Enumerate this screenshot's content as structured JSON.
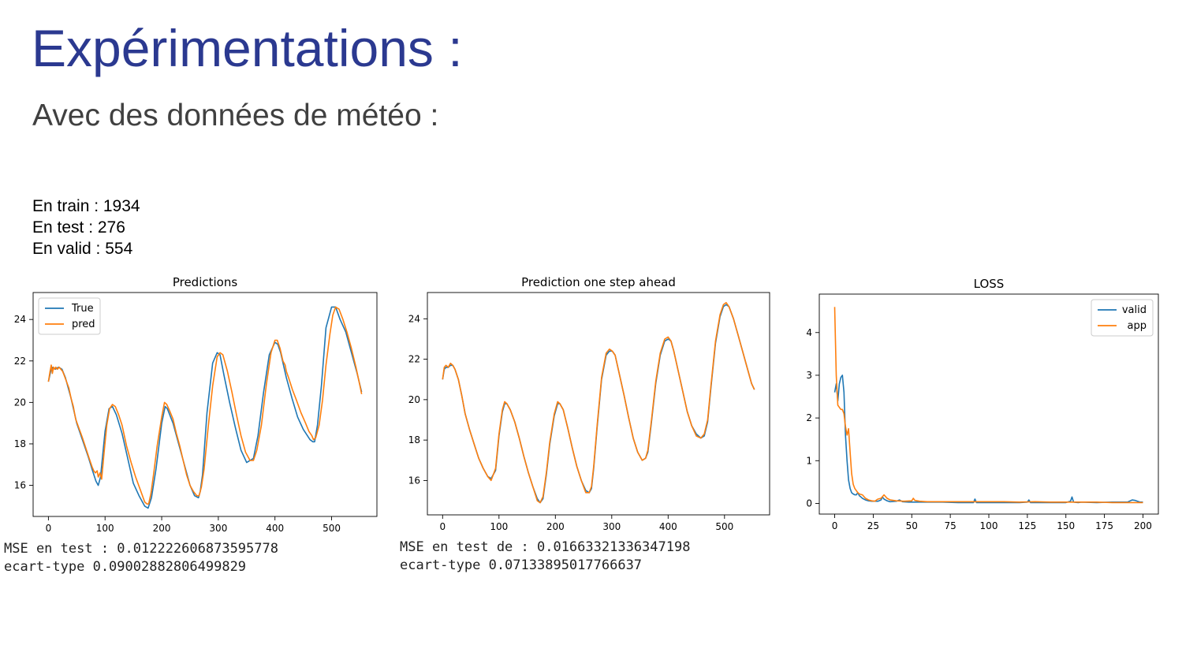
{
  "slide": {
    "title": "Expérimentations :",
    "subtitle": "Avec des données de météo :",
    "counts": [
      "En train : 1934",
      "En test : 276",
      "En valid : 554"
    ]
  },
  "stats": {
    "predictions": [
      "MSE en test : 0.012222606873595778",
      "ecart-type 0.09002882806499829"
    ],
    "one_step": [
      "MSE en test de : 0.01663321336347198",
      "ecart-type 0.07133895017766637"
    ]
  },
  "colors": {
    "blue": "#1f77b4",
    "orange": "#ff7f0e",
    "title": "#2b3990"
  },
  "chart_data": [
    {
      "type": "line",
      "title": "Predictions",
      "xlabel": "",
      "ylabel": "",
      "xlim": [
        -27,
        580
      ],
      "ylim": [
        14.5,
        25.3
      ],
      "xticks": [
        0,
        100,
        200,
        300,
        400,
        500
      ],
      "yticks": [
        16,
        18,
        20,
        22,
        24
      ],
      "legend": "top-left",
      "series": [
        {
          "name": "True",
          "color": "#1f77b4",
          "x": [
            0,
            4,
            8,
            12,
            18,
            24,
            30,
            40,
            50,
            60,
            70,
            78,
            84,
            88,
            92,
            100,
            107,
            113,
            120,
            130,
            140,
            150,
            160,
            170,
            176,
            182,
            190,
            200,
            206,
            210,
            220,
            230,
            240,
            250,
            258,
            265,
            268,
            272,
            280,
            290,
            298,
            303,
            310,
            320,
            330,
            340,
            350,
            362,
            370,
            380,
            390,
            400,
            405,
            410,
            420,
            430,
            440,
            450,
            462,
            467,
            470,
            475,
            482,
            490,
            500,
            507,
            515,
            525,
            535,
            545,
            553
          ],
          "y": [
            21.0,
            21.5,
            21.7,
            21.6,
            21.7,
            21.6,
            21.2,
            20.2,
            19.0,
            18.2,
            17.4,
            16.7,
            16.2,
            16.0,
            16.4,
            18.6,
            19.7,
            19.8,
            19.4,
            18.5,
            17.3,
            16.1,
            15.5,
            15.0,
            14.9,
            15.4,
            16.8,
            19.0,
            19.8,
            19.7,
            19.0,
            18.0,
            17.0,
            16.0,
            15.5,
            15.4,
            15.7,
            16.5,
            19.5,
            21.9,
            22.4,
            22.3,
            21.3,
            20.0,
            18.8,
            17.7,
            17.1,
            17.3,
            18.4,
            20.5,
            22.3,
            22.9,
            22.8,
            22.4,
            21.2,
            20.2,
            19.3,
            18.7,
            18.2,
            18.1,
            18.1,
            18.9,
            20.8,
            23.6,
            24.6,
            24.6,
            24.0,
            23.4,
            22.4,
            21.4,
            20.5
          ]
        },
        {
          "name": "pred",
          "color": "#ff7f0e",
          "x": [
            0,
            3,
            5,
            7,
            9,
            11,
            13,
            16,
            19,
            22,
            25,
            28,
            32,
            36,
            40,
            44,
            48,
            52,
            56,
            60,
            66,
            72,
            77,
            80,
            83,
            86,
            88,
            91,
            94,
            98,
            103,
            108,
            113,
            118,
            124,
            130,
            138,
            146,
            154,
            162,
            170,
            174,
            177,
            181,
            186,
            192,
            200,
            205,
            209,
            214,
            220,
            226,
            232,
            238,
            244,
            250,
            256,
            262,
            266,
            270,
            275,
            282,
            290,
            298,
            303,
            308,
            316,
            324,
            332,
            340,
            348,
            356,
            362,
            368,
            376,
            385,
            393,
            400,
            404,
            409,
            414,
            418,
            420,
            424,
            431,
            438,
            446,
            454,
            460,
            465,
            468,
            472,
            478,
            484,
            490,
            497,
            502,
            507,
            513,
            520,
            527,
            535,
            543,
            550,
            553
          ],
          "y": [
            21.0,
            21.5,
            21.8,
            21.4,
            21.7,
            21.6,
            21.7,
            21.6,
            21.7,
            21.6,
            21.5,
            21.3,
            21.0,
            20.7,
            20.2,
            19.8,
            19.2,
            18.9,
            18.6,
            18.3,
            17.8,
            17.3,
            16.9,
            16.7,
            16.6,
            16.7,
            16.4,
            16.6,
            16.3,
            17.5,
            18.9,
            19.7,
            19.9,
            19.8,
            19.4,
            18.9,
            17.9,
            17.1,
            16.4,
            15.8,
            15.2,
            15.1,
            15.1,
            15.6,
            16.6,
            17.9,
            19.3,
            20.0,
            19.9,
            19.6,
            19.2,
            18.5,
            17.9,
            17.2,
            16.5,
            16.0,
            15.7,
            15.5,
            15.5,
            15.9,
            16.8,
            18.8,
            20.8,
            22.2,
            22.4,
            22.3,
            21.5,
            20.5,
            19.4,
            18.4,
            17.6,
            17.2,
            17.2,
            17.7,
            18.9,
            20.9,
            22.4,
            23.0,
            23.0,
            22.6,
            22.0,
            21.8,
            21.5,
            21.2,
            20.6,
            20.1,
            19.5,
            19.0,
            18.6,
            18.4,
            18.2,
            18.3,
            18.9,
            20.1,
            21.8,
            23.3,
            24.2,
            24.6,
            24.5,
            24.0,
            23.4,
            22.6,
            21.7,
            20.8,
            20.4
          ]
        }
      ]
    },
    {
      "type": "line",
      "title": "Prediction one step ahead",
      "xlabel": "",
      "ylabel": "",
      "xlim": [
        -27,
        580
      ],
      "ylim": [
        14.3,
        25.3
      ],
      "xticks": [
        0,
        100,
        200,
        300,
        400,
        500
      ],
      "yticks": [
        16,
        18,
        20,
        22,
        24
      ],
      "series": [
        {
          "color": "#1f77b4",
          "x": [
            0,
            3,
            6,
            10,
            14,
            18,
            22,
            28,
            34,
            40,
            48,
            56,
            64,
            72,
            80,
            86,
            90,
            94,
            100,
            106,
            110,
            114,
            120,
            128,
            136,
            144,
            152,
            160,
            168,
            173,
            178,
            184,
            190,
            198,
            204,
            208,
            214,
            222,
            230,
            238,
            246,
            254,
            260,
            264,
            268,
            274,
            282,
            290,
            296,
            301,
            306,
            314,
            322,
            330,
            338,
            346,
            354,
            360,
            364,
            370,
            378,
            386,
            394,
            400,
            405,
            410,
            418,
            426,
            434,
            442,
            450,
            458,
            464,
            470,
            476,
            484,
            492,
            498,
            503,
            508,
            516,
            524,
            532,
            540,
            548,
            553
          ],
          "y": [
            21.0,
            21.5,
            21.6,
            21.6,
            21.7,
            21.7,
            21.5,
            21.0,
            20.2,
            19.3,
            18.5,
            17.8,
            17.1,
            16.6,
            16.2,
            16.1,
            16.3,
            16.5,
            18.2,
            19.4,
            19.8,
            19.8,
            19.5,
            18.9,
            18.1,
            17.2,
            16.4,
            15.7,
            15.1,
            14.9,
            15.1,
            16.3,
            17.8,
            19.2,
            19.8,
            19.8,
            19.5,
            18.6,
            17.6,
            16.7,
            16.0,
            15.5,
            15.4,
            15.6,
            16.6,
            18.6,
            21.0,
            22.2,
            22.4,
            22.4,
            22.2,
            21.2,
            20.2,
            19.1,
            18.1,
            17.4,
            17.0,
            17.1,
            17.4,
            18.8,
            20.8,
            22.2,
            22.9,
            23.0,
            22.9,
            22.4,
            21.4,
            20.4,
            19.4,
            18.7,
            18.3,
            18.1,
            18.2,
            18.9,
            20.6,
            22.8,
            24.1,
            24.6,
            24.7,
            24.6,
            24.0,
            23.2,
            22.4,
            21.6,
            20.8,
            20.5
          ]
        },
        {
          "color": "#ff7f0e",
          "x": [
            0,
            3,
            6,
            10,
            14,
            18,
            22,
            28,
            34,
            40,
            48,
            56,
            64,
            72,
            80,
            86,
            90,
            94,
            100,
            106,
            110,
            114,
            120,
            128,
            136,
            144,
            152,
            160,
            168,
            173,
            178,
            184,
            190,
            198,
            204,
            208,
            214,
            222,
            230,
            238,
            246,
            254,
            260,
            264,
            268,
            274,
            282,
            290,
            296,
            301,
            306,
            314,
            322,
            330,
            338,
            346,
            354,
            360,
            364,
            370,
            378,
            386,
            394,
            400,
            405,
            410,
            418,
            426,
            434,
            442,
            450,
            458,
            464,
            470,
            476,
            484,
            492,
            498,
            503,
            508,
            516,
            524,
            532,
            540,
            548,
            553
          ],
          "y": [
            21.0,
            21.6,
            21.7,
            21.6,
            21.8,
            21.7,
            21.5,
            21.0,
            20.2,
            19.3,
            18.5,
            17.8,
            17.1,
            16.6,
            16.2,
            16.0,
            16.3,
            16.6,
            18.3,
            19.5,
            19.9,
            19.8,
            19.5,
            18.9,
            18.1,
            17.2,
            16.4,
            15.7,
            15.0,
            14.9,
            15.2,
            16.4,
            17.9,
            19.3,
            19.9,
            19.8,
            19.5,
            18.6,
            17.6,
            16.7,
            16.0,
            15.4,
            15.4,
            15.7,
            16.7,
            18.7,
            21.1,
            22.3,
            22.5,
            22.4,
            22.2,
            21.2,
            20.2,
            19.1,
            18.1,
            17.4,
            17.0,
            17.1,
            17.5,
            18.9,
            20.9,
            22.3,
            23.0,
            23.1,
            22.9,
            22.4,
            21.4,
            20.4,
            19.4,
            18.7,
            18.2,
            18.1,
            18.3,
            19.0,
            20.7,
            22.9,
            24.2,
            24.7,
            24.8,
            24.6,
            24.0,
            23.2,
            22.4,
            21.6,
            20.8,
            20.5
          ]
        }
      ]
    },
    {
      "type": "line",
      "title": "LOSS",
      "xlabel": "",
      "ylabel": "",
      "xlim": [
        -10,
        210
      ],
      "ylim": [
        -0.25,
        4.9
      ],
      "xticks": [
        0,
        25,
        50,
        75,
        100,
        125,
        150,
        175,
        200
      ],
      "yticks": [
        0,
        1,
        2,
        3,
        4
      ],
      "legend": "top-right",
      "series": [
        {
          "name": "valid",
          "color": "#1f77b4",
          "x": [
            0,
            1,
            2,
            3,
            4,
            5,
            6,
            7,
            8,
            9,
            10,
            11,
            12,
            13,
            14,
            15,
            16,
            17,
            18,
            20,
            22,
            24,
            26,
            28,
            30,
            31,
            32,
            34,
            36,
            40,
            42,
            44,
            48,
            52,
            60,
            70,
            80,
            90,
            91,
            92,
            95,
            100,
            110,
            120,
            125,
            126,
            127,
            130,
            140,
            150,
            153,
            154,
            155,
            158,
            160,
            170,
            180,
            190,
            193,
            195,
            198,
            200
          ],
          "y": [
            2.6,
            2.8,
            2.4,
            2.8,
            2.95,
            3.0,
            2.6,
            1.6,
            1.0,
            0.55,
            0.35,
            0.25,
            0.22,
            0.2,
            0.2,
            0.25,
            0.18,
            0.15,
            0.12,
            0.08,
            0.06,
            0.05,
            0.05,
            0.05,
            0.08,
            0.15,
            0.1,
            0.06,
            0.04,
            0.05,
            0.08,
            0.04,
            0.03,
            0.03,
            0.03,
            0.03,
            0.02,
            0.02,
            0.1,
            0.02,
            0.02,
            0.02,
            0.02,
            0.02,
            0.03,
            0.08,
            0.02,
            0.02,
            0.02,
            0.02,
            0.05,
            0.15,
            0.03,
            0.02,
            0.03,
            0.02,
            0.03,
            0.03,
            0.08,
            0.07,
            0.03,
            0.03
          ]
        },
        {
          "name": "app",
          "color": "#ff7f0e",
          "x": [
            0,
            1,
            2,
            3,
            4,
            5,
            6,
            7,
            8,
            9,
            10,
            11,
            12,
            13,
            14,
            15,
            16,
            18,
            20,
            22,
            24,
            26,
            28,
            30,
            32,
            34,
            36,
            40,
            45,
            50,
            51,
            52,
            55,
            60,
            70,
            80,
            90,
            100,
            110,
            120,
            130,
            140,
            150,
            160,
            170,
            180,
            190,
            200
          ],
          "y": [
            4.6,
            3.0,
            2.3,
            2.25,
            2.2,
            2.2,
            2.1,
            1.8,
            1.6,
            1.75,
            1.2,
            0.7,
            0.45,
            0.35,
            0.3,
            0.25,
            0.22,
            0.2,
            0.12,
            0.08,
            0.06,
            0.05,
            0.1,
            0.12,
            0.2,
            0.12,
            0.08,
            0.06,
            0.05,
            0.06,
            0.12,
            0.07,
            0.05,
            0.04,
            0.04,
            0.04,
            0.04,
            0.04,
            0.04,
            0.03,
            0.04,
            0.03,
            0.03,
            0.03,
            0.03,
            0.02,
            0.02,
            0.02
          ]
        }
      ]
    }
  ]
}
